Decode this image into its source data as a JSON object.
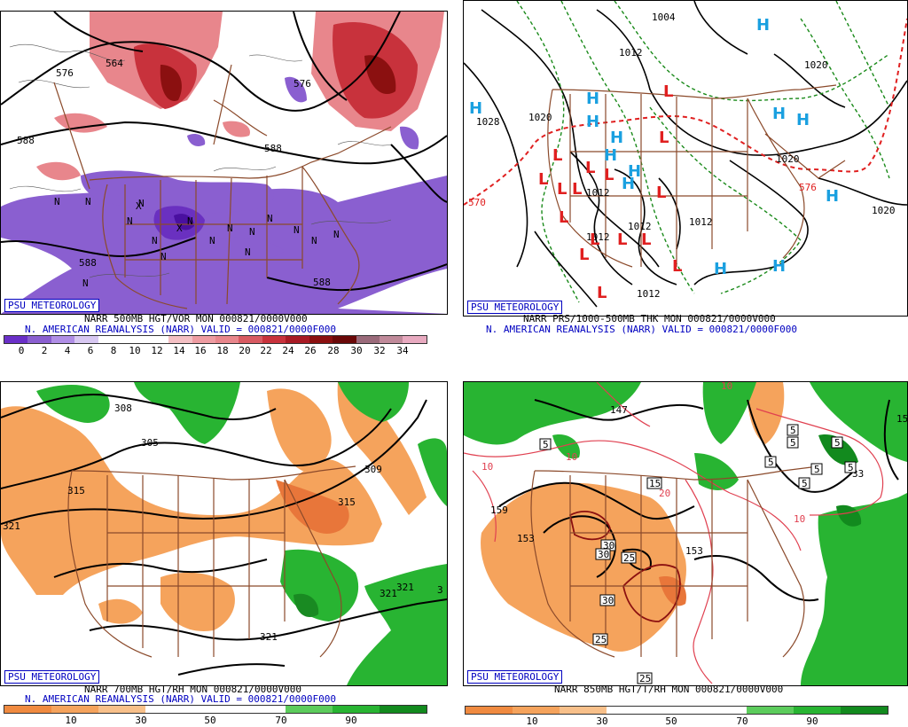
{
  "panels": [
    {
      "badge": "PSU METEOROLOGY",
      "caption1": "NARR 500MB HGT/VOR MON 000821/0000V000",
      "caption2": "N. AMERICAN REANALYSIS (NARR) VALID = 000821/0000F000",
      "colorbar_ticks": [
        "0",
        "2",
        "4",
        "6",
        "8",
        "10",
        "12",
        "14",
        "16",
        "18",
        "20",
        "22",
        "24",
        "26",
        "28",
        "30",
        "32",
        "34"
      ],
      "contour_labels": [
        "576",
        "564",
        "588",
        "576",
        "588",
        "588",
        "588"
      ],
      "center_marks": [
        "N",
        "N",
        "N",
        "N",
        "N",
        "N",
        "N",
        "N",
        "N",
        "N",
        "N",
        "N",
        "N",
        "N",
        "N",
        "N",
        "X",
        "X"
      ]
    },
    {
      "badge": "PSU METEOROLOGY",
      "caption1": "NARR PRS/1000-500MB THK MON 000821/0000V000",
      "caption2": "N. AMERICAN REANALYSIS (NARR) VALID = 000821/0000F000",
      "contour_labels": [
        "1004",
        "1012",
        "1020",
        "1028",
        "1020",
        "1012",
        "1012",
        "1012",
        "1012",
        "1012",
        "1020",
        "1020",
        "570",
        "576"
      ],
      "highs": [
        "H",
        "H",
        "H",
        "H",
        "H",
        "H",
        "H",
        "H",
        "H",
        "H",
        "H",
        "H",
        "H"
      ],
      "lows": [
        "L",
        "L",
        "L",
        "L",
        "L",
        "L",
        "L",
        "L",
        "L",
        "L",
        "L",
        "L",
        "L",
        "L",
        "L",
        "L"
      ]
    },
    {
      "badge": "PSU METEOROLOGY",
      "caption1": "NARR 700MB HGT/RH MON 000821/0000V000",
      "caption2": "N. AMERICAN REANALYSIS (NARR) VALID = 000821/0000F000",
      "colorbar_ticks": [
        "10",
        "30",
        "50",
        "70",
        "90"
      ],
      "contour_labels": [
        "308",
        "305",
        "309",
        "315",
        "315",
        "321",
        "321",
        "321",
        "321",
        "3"
      ]
    },
    {
      "badge": "PSU METEOROLOGY",
      "caption1": "NARR 850MB HGT/T/RH MON 000821/0000V000",
      "colorbar_ticks": [
        "10",
        "30",
        "50",
        "70",
        "90"
      ],
      "contour_labels": [
        "147",
        "159",
        "153",
        "153",
        "15",
        "10",
        "10",
        "10",
        "10",
        "20",
        "33"
      ],
      "temp_boxes": [
        "5",
        "5",
        "5",
        "5",
        "5",
        "5",
        "5",
        "15",
        "30",
        "30",
        "25",
        "30",
        "25",
        "25",
        "5"
      ]
    }
  ],
  "colors": {
    "caption_blue": "#0000c0",
    "vor_purple": "#8a5fd0",
    "vor_red": "#c8323c",
    "rh_orange": "#f5a35c",
    "rh_green": "#28b432",
    "map_brown": "#8b4a2b",
    "high_blue": "#1aa0e0",
    "low_red": "#e02020",
    "thick_red": "#e02020",
    "thick_green": "#1a8a1a"
  }
}
